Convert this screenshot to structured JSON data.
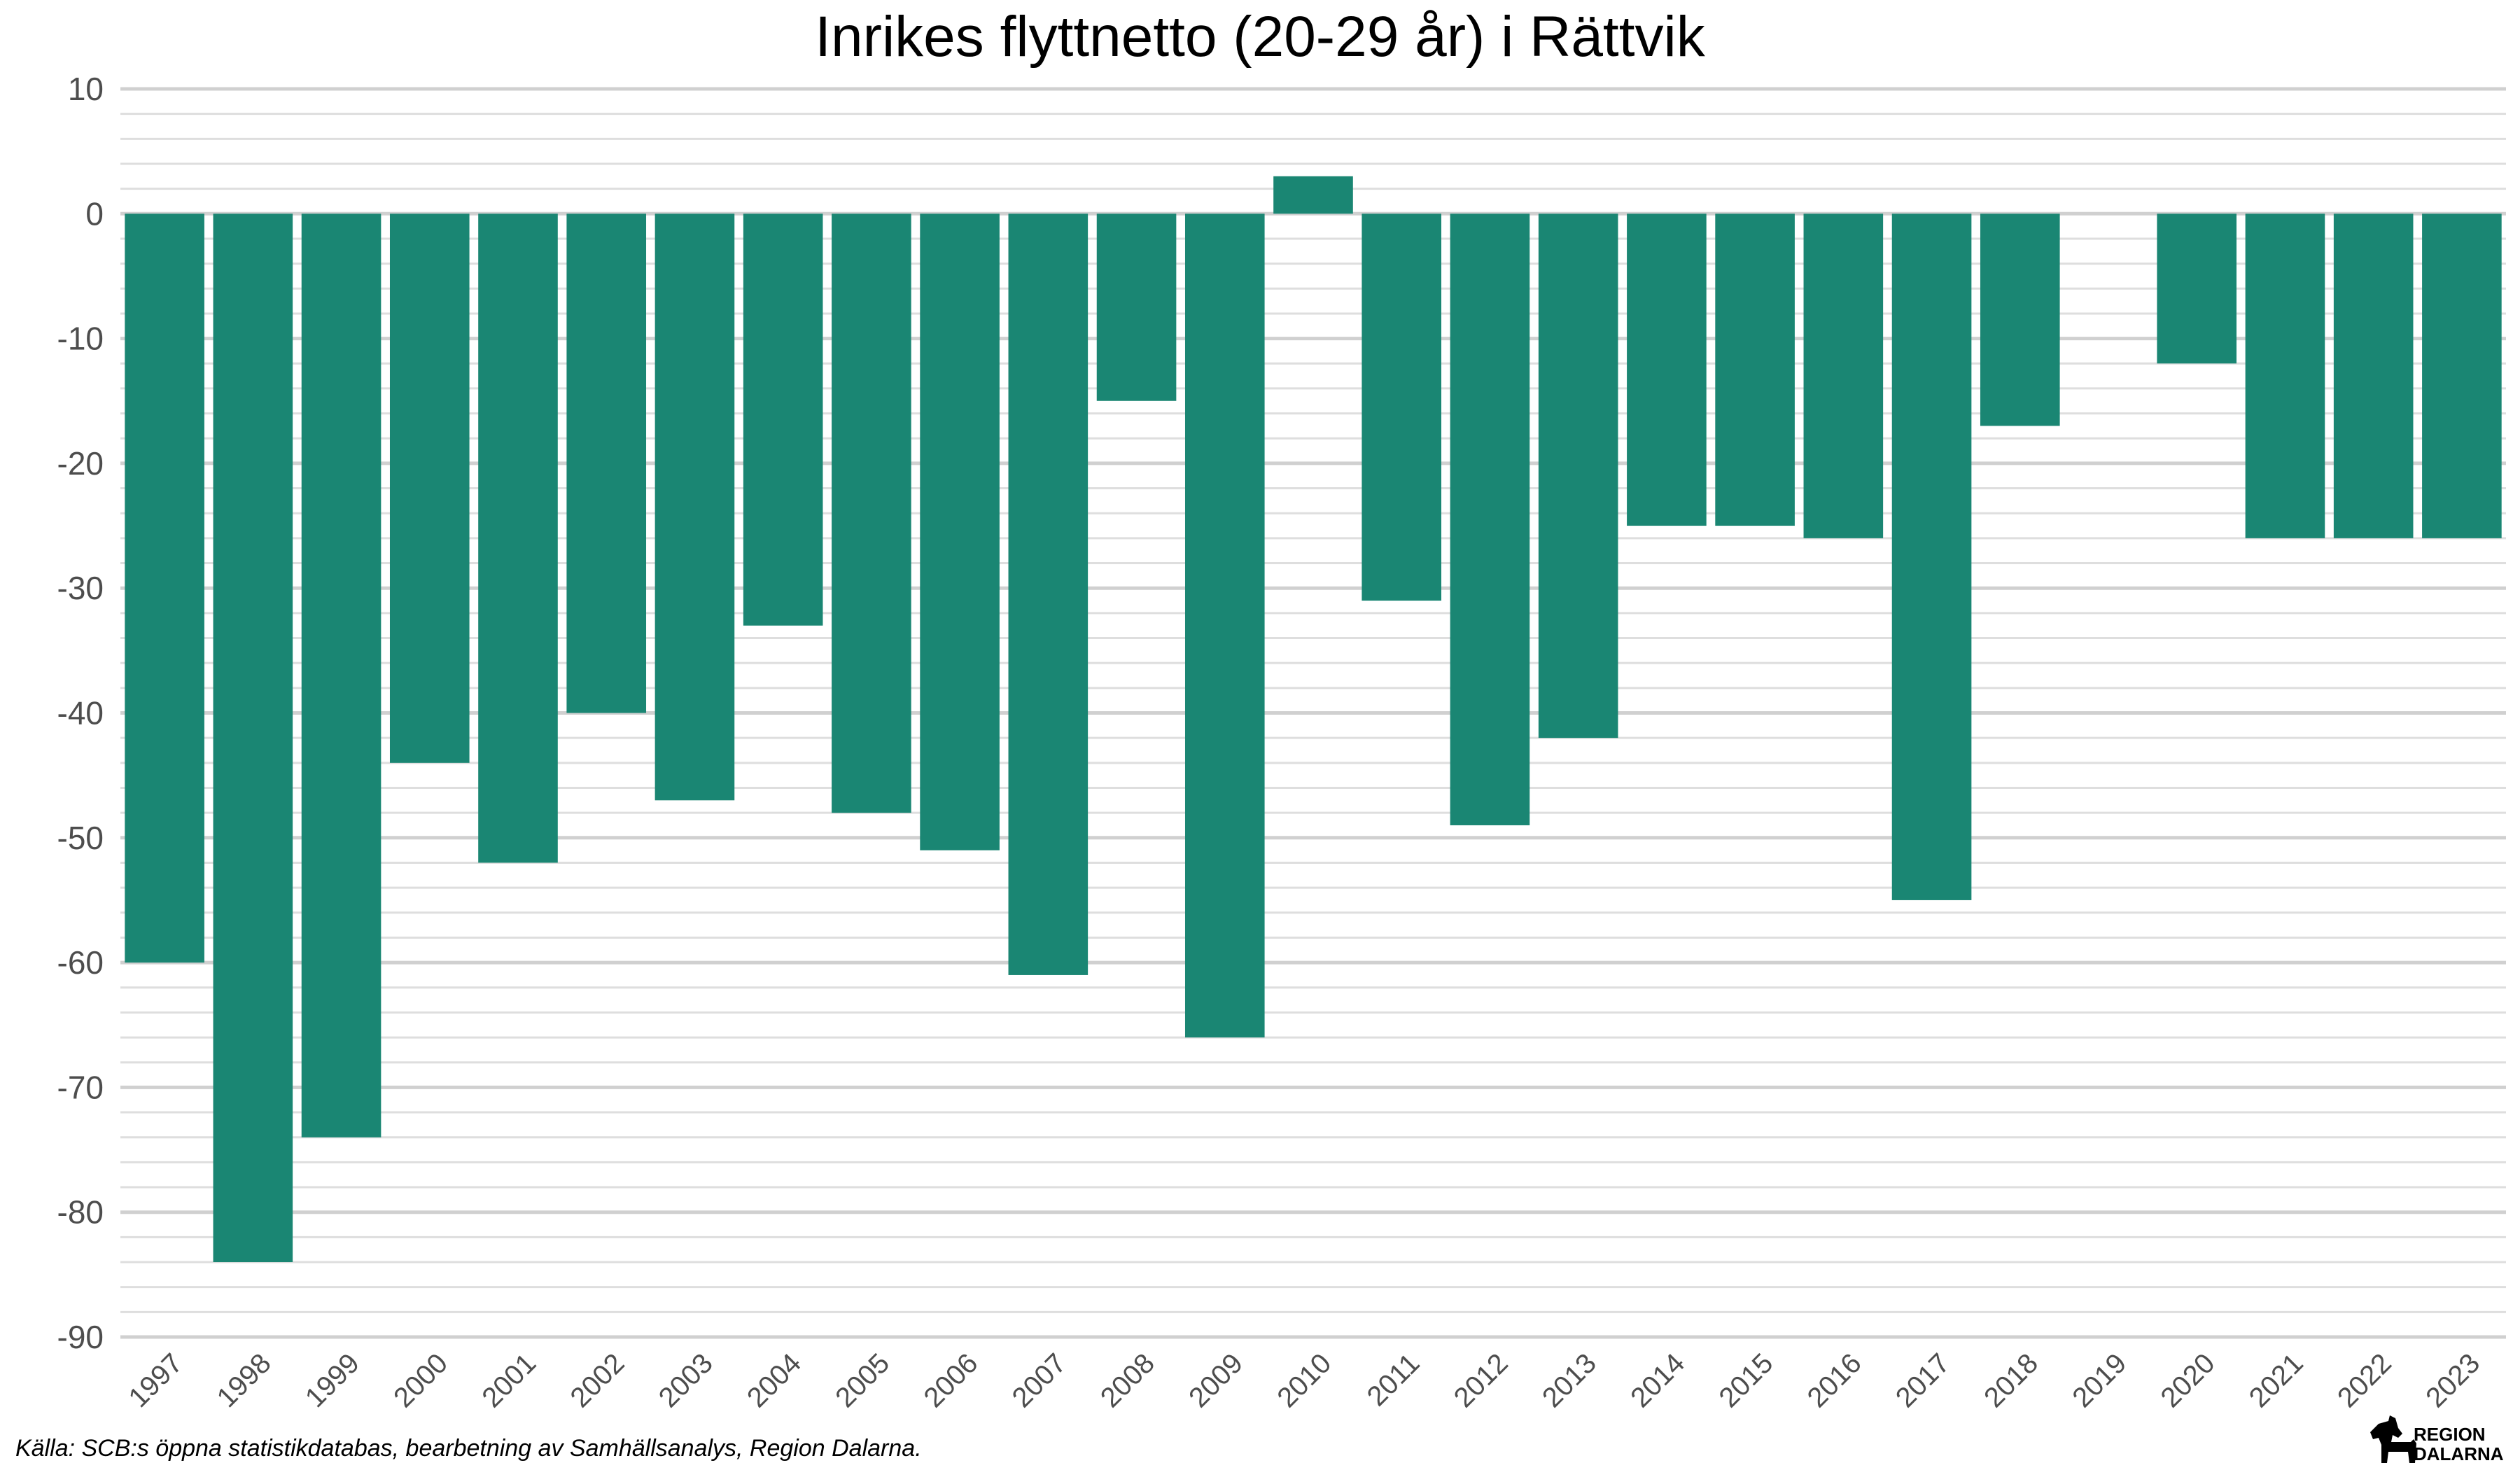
{
  "chart_data": {
    "type": "bar",
    "title": "Inrikes flyttnetto (20-29 år) i Rättvik",
    "xlabel": "",
    "ylabel": "",
    "ylim": [
      -90,
      10
    ],
    "yticks": [
      "10",
      "0",
      "-10",
      "-20",
      "-30",
      "-40",
      "-50",
      "-60",
      "-70",
      "-80",
      "-90"
    ],
    "categories": [
      "1997",
      "1998",
      "1999",
      "2000",
      "2001",
      "2002",
      "2003",
      "2004",
      "2005",
      "2006",
      "2007",
      "2008",
      "2009",
      "2010",
      "2011",
      "2012",
      "2013",
      "2014",
      "2015",
      "2016",
      "2017",
      "2018",
      "2019",
      "2020",
      "2021",
      "2022",
      "2023"
    ],
    "values": [
      -60,
      -84,
      -74,
      -44,
      -52,
      -40,
      -47,
      -33,
      -48,
      -51,
      -61,
      -15,
      -66,
      3,
      -31,
      -49,
      -42,
      -25,
      -25,
      -26,
      -55,
      -17,
      0,
      -12,
      -26,
      -26,
      -26
    ],
    "bar_color": "#1a8673",
    "grid": true,
    "legend": "none"
  },
  "caption": "Källa: SCB:s öppna statistikdatabas, bearbetning av Samhällsanalys, Region Dalarna.",
  "logo": {
    "line1": "REGION",
    "line2": "DALARNA"
  }
}
